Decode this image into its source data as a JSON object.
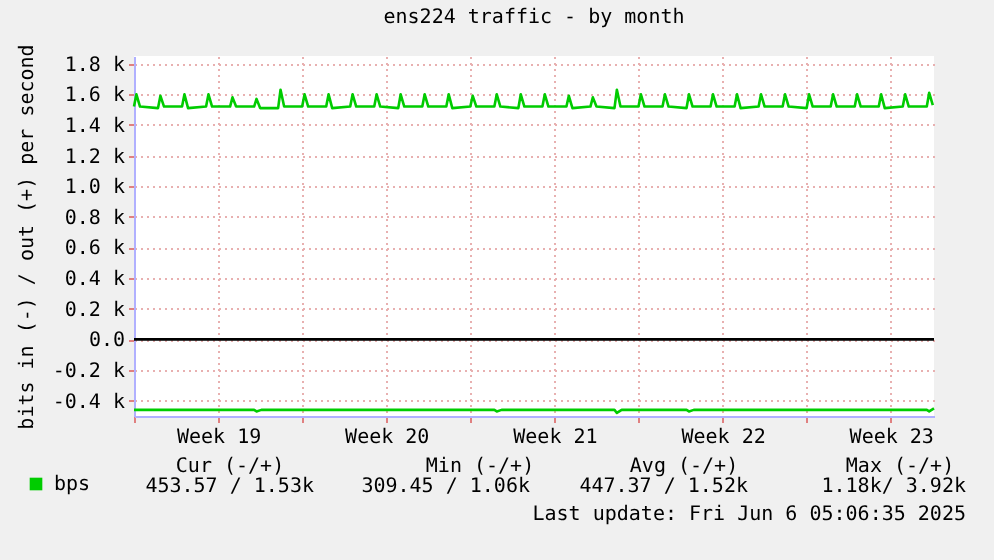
{
  "chart_data": {
    "type": "line",
    "title": "ens224 traffic - by month",
    "ylabel": "bits in (-) / out (+) per second",
    "xlim": [
      "2025-05-04T00:00",
      "2025-06-06T07:12"
    ],
    "ylim": [
      -0.5,
      1.85
    ],
    "xticks": [
      {
        "value": "2025-05-04",
        "label": null
      },
      {
        "value": "2025-05-07T12:00",
        "label": "Week 19"
      },
      {
        "value": "2025-05-11",
        "label": null
      },
      {
        "value": "2025-05-14T12:00",
        "label": "Week 20"
      },
      {
        "value": "2025-05-18",
        "label": null
      },
      {
        "value": "2025-05-21T12:00",
        "label": "Week 21"
      },
      {
        "value": "2025-05-25",
        "label": null
      },
      {
        "value": "2025-05-28T12:00",
        "label": "Week 22"
      },
      {
        "value": "2025-06-01",
        "label": null
      },
      {
        "value": "2025-06-04T12:00",
        "label": "Week 23"
      }
    ],
    "yticks": [
      {
        "value": -0.4,
        "label": "-0.4 k"
      },
      {
        "value": -0.2,
        "label": "-0.2 k"
      },
      {
        "value": 0,
        "label": "0.0"
      },
      {
        "value": 0.2,
        "label": "0.2 k"
      },
      {
        "value": 0.4,
        "label": "0.4 k"
      },
      {
        "value": 0.6,
        "label": "0.6 k"
      },
      {
        "value": 0.8,
        "label": "0.8 k"
      },
      {
        "value": 1.0,
        "label": "1.0 k"
      },
      {
        "value": 1.2,
        "label": "1.2 k"
      },
      {
        "value": 1.4,
        "label": "1.4 k"
      },
      {
        "value": 1.6,
        "label": "1.6 k"
      },
      {
        "value": 1.8,
        "label": "1.8 k"
      }
    ],
    "grid": true,
    "legend": "bottom left",
    "marker": "none",
    "line_style": "solid",
    "ref_lines": [
      {
        "axis": "y",
        "value": 0,
        "color": "#000000"
      }
    ],
    "series": [
      {
        "name": "bps",
        "color": "#00cc00",
        "x": [
          "2025-05-04T00:00",
          "2025-05-04T02:24",
          "2025-05-04T06:00",
          "2025-05-05T00:00",
          "2025-05-05T02:24",
          "2025-05-05T06:00",
          "2025-05-06T00:00",
          "2025-05-06T02:24",
          "2025-05-06T06:00",
          "2025-05-07T00:00",
          "2025-05-07T02:24",
          "2025-05-07T06:00",
          "2025-05-08T00:00",
          "2025-05-08T02:24",
          "2025-05-08T06:00",
          "2025-05-09T00:00",
          "2025-05-09T02:24",
          "2025-05-09T06:00",
          "2025-05-10T00:00",
          "2025-05-10T02:24",
          "2025-05-10T06:00",
          "2025-05-11T00:00",
          "2025-05-11T02:24",
          "2025-05-11T06:00",
          "2025-05-12T00:00",
          "2025-05-12T02:24",
          "2025-05-12T06:00",
          "2025-05-13T00:00",
          "2025-05-13T02:24",
          "2025-05-13T06:00",
          "2025-05-14T00:00",
          "2025-05-14T02:24",
          "2025-05-14T06:00",
          "2025-05-15T00:00",
          "2025-05-15T02:24",
          "2025-05-15T06:00",
          "2025-05-16T00:00",
          "2025-05-16T02:24",
          "2025-05-16T06:00",
          "2025-05-17T00:00",
          "2025-05-17T02:24",
          "2025-05-17T06:00",
          "2025-05-18T00:00",
          "2025-05-18T02:24",
          "2025-05-18T06:00",
          "2025-05-19T00:00",
          "2025-05-19T02:24",
          "2025-05-19T06:00",
          "2025-05-20T00:00",
          "2025-05-20T02:24",
          "2025-05-20T06:00",
          "2025-05-21T00:00",
          "2025-05-21T02:24",
          "2025-05-21T06:00",
          "2025-05-22T00:00",
          "2025-05-22T02:24",
          "2025-05-22T06:00",
          "2025-05-23T00:00",
          "2025-05-23T02:24",
          "2025-05-23T06:00",
          "2025-05-24T00:00",
          "2025-05-24T02:24",
          "2025-05-24T06:00",
          "2025-05-25T00:00",
          "2025-05-25T02:24",
          "2025-05-25T06:00",
          "2025-05-26T00:00",
          "2025-05-26T02:24",
          "2025-05-26T06:00",
          "2025-05-27T00:00",
          "2025-05-27T02:24",
          "2025-05-27T06:00",
          "2025-05-28T00:00",
          "2025-05-28T02:24",
          "2025-05-28T06:00",
          "2025-05-29T00:00",
          "2025-05-29T02:24",
          "2025-05-29T06:00",
          "2025-05-30T00:00",
          "2025-05-30T02:24",
          "2025-05-30T06:00",
          "2025-05-31T00:00",
          "2025-05-31T02:24",
          "2025-05-31T06:00",
          "2025-06-01T00:00",
          "2025-06-01T02:24",
          "2025-06-01T06:00",
          "2025-06-02T00:00",
          "2025-06-02T02:24",
          "2025-06-02T06:00",
          "2025-06-03T00:00",
          "2025-06-03T02:24",
          "2025-06-03T06:00",
          "2025-06-04T00:00",
          "2025-06-04T02:24",
          "2025-06-04T06:00",
          "2025-06-05T00:00",
          "2025-06-05T02:24",
          "2025-06-05T06:00",
          "2025-06-06T00:00",
          "2025-06-06T02:24",
          "2025-06-06T06:00"
        ],
        "values": [
          1.52,
          1.6,
          1.52,
          1.51,
          1.59,
          1.52,
          1.52,
          1.6,
          1.51,
          1.52,
          1.6,
          1.52,
          1.52,
          1.58,
          1.52,
          1.52,
          1.57,
          1.51,
          1.51,
          1.63,
          1.52,
          1.52,
          1.6,
          1.52,
          1.52,
          1.6,
          1.51,
          1.52,
          1.6,
          1.52,
          1.52,
          1.6,
          1.52,
          1.51,
          1.6,
          1.52,
          1.52,
          1.6,
          1.52,
          1.52,
          1.6,
          1.51,
          1.52,
          1.59,
          1.52,
          1.52,
          1.6,
          1.52,
          1.51,
          1.6,
          1.52,
          1.52,
          1.6,
          1.52,
          1.52,
          1.59,
          1.51,
          1.52,
          1.58,
          1.52,
          1.51,
          1.63,
          1.52,
          1.52,
          1.6,
          1.52,
          1.52,
          1.6,
          1.52,
          1.51,
          1.6,
          1.52,
          1.52,
          1.6,
          1.52,
          1.52,
          1.6,
          1.51,
          1.52,
          1.6,
          1.52,
          1.52,
          1.6,
          1.52,
          1.51,
          1.6,
          1.52,
          1.52,
          1.6,
          1.52,
          1.52,
          1.6,
          1.52,
          1.52,
          1.6,
          1.51,
          1.52,
          1.6,
          1.52,
          1.52,
          1.61,
          1.53
        ]
      },
      {
        "color": "#00cc00",
        "x": [
          "2025-05-04T00:00",
          "2025-05-05T00:00",
          "2025-05-06T00:00",
          "2025-05-07T00:00",
          "2025-05-08T00:00",
          "2025-05-09T00:00",
          "2025-05-09T02:24",
          "2025-05-09T07:12",
          "2025-05-10T00:00",
          "2025-05-11T00:00",
          "2025-05-12T00:00",
          "2025-05-13T00:00",
          "2025-05-14T00:00",
          "2025-05-15T00:00",
          "2025-05-16T00:00",
          "2025-05-17T00:00",
          "2025-05-18T00:00",
          "2025-05-19T00:00",
          "2025-05-19T02:24",
          "2025-05-19T07:12",
          "2025-05-20T00:00",
          "2025-05-21T00:00",
          "2025-05-22T00:00",
          "2025-05-23T00:00",
          "2025-05-24T00:00",
          "2025-05-24T02:24",
          "2025-05-24T07:12",
          "2025-05-25T00:00",
          "2025-05-26T00:00",
          "2025-05-27T00:00",
          "2025-05-27T02:24",
          "2025-05-27T07:12",
          "2025-05-28T00:00",
          "2025-05-29T00:00",
          "2025-05-30T00:00",
          "2025-05-31T00:00",
          "2025-06-01T00:00",
          "2025-06-02T00:00",
          "2025-06-03T00:00",
          "2025-06-04T00:00",
          "2025-06-05T00:00",
          "2025-06-06T00:00",
          "2025-06-06T02:24",
          "2025-06-06T07:12"
        ],
        "values": [
          -0.46,
          -0.46,
          -0.46,
          -0.46,
          -0.46,
          -0.46,
          -0.47,
          -0.46,
          -0.46,
          -0.46,
          -0.46,
          -0.46,
          -0.46,
          -0.46,
          -0.46,
          -0.46,
          -0.46,
          -0.46,
          -0.47,
          -0.46,
          -0.46,
          -0.46,
          -0.46,
          -0.46,
          -0.46,
          -0.48,
          -0.46,
          -0.46,
          -0.46,
          -0.46,
          -0.47,
          -0.46,
          -0.46,
          -0.46,
          -0.46,
          -0.46,
          -0.46,
          -0.46,
          -0.46,
          -0.46,
          -0.46,
          -0.46,
          -0.47,
          -0.45
        ]
      }
    ],
    "annotations": [
      "Cur (-/+)",
      "Min (-/+)",
      "Avg (-/+)",
      "Max (-/+)",
      "453.57 /  1.53k",
      "309.45 /  1.06k",
      "447.37 /  1.52k",
      "1.18k/  3.92k",
      "Last update: Fri Jun  6 05:06:35 2025"
    ]
  }
}
